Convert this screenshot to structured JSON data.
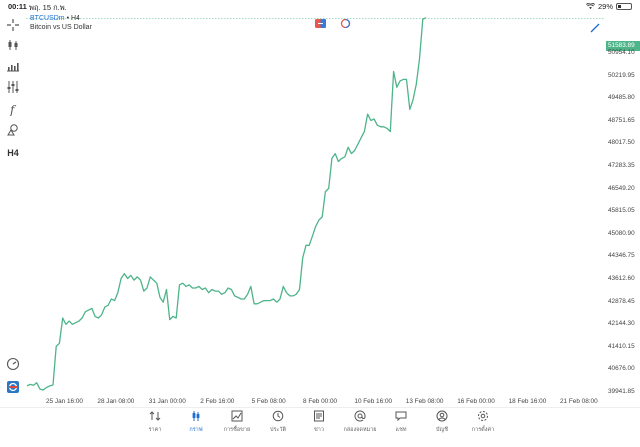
{
  "status": {
    "time": "00:11",
    "date": "พฤ. 15 ก.พ.",
    "battery_text": "29%",
    "battery_level": 0.29
  },
  "symbol": {
    "name": "BTCUSDm",
    "separator": " • ",
    "timeframe": "H4",
    "description": "Bitcoin vs US Dollar"
  },
  "toolbar": {
    "timeframe_label": "H4"
  },
  "price_axis": {
    "current": "51583.89",
    "ticks": [
      "50954.10",
      "50219.95",
      "49485.80",
      "48751.65",
      "48017.50",
      "47283.35",
      "46549.20",
      "45815.05",
      "45080.90",
      "44346.75",
      "43612.60",
      "42878.45",
      "42144.30",
      "41410.15",
      "40676.00",
      "39941.85"
    ]
  },
  "time_axis": {
    "ticks": [
      "25 Jan 16:00",
      "28 Jan 08:00",
      "31 Jan 00:00",
      "2 Feb 16:00",
      "5 Feb 08:00",
      "8 Feb 00:00",
      "10 Feb 16:00",
      "13 Feb 08:00",
      "16 Feb 00:00",
      "18 Feb 16:00",
      "21 Feb 08:00"
    ]
  },
  "nav": [
    {
      "label": "ราคา",
      "icon": "quotes-icon"
    },
    {
      "label": "กราฟ",
      "icon": "chart-icon",
      "active": true
    },
    {
      "label": "การซื้อขาย",
      "icon": "trade-icon"
    },
    {
      "label": "ประวัติ",
      "icon": "history-icon"
    },
    {
      "label": "ข่าว",
      "icon": "news-icon"
    },
    {
      "label": "กล่องจดหมาย",
      "icon": "mailbox-icon"
    },
    {
      "label": "แชท",
      "icon": "chat-icon"
    },
    {
      "label": "บัญชี",
      "icon": "account-icon"
    },
    {
      "label": "การตั้งค่า",
      "icon": "settings-icon"
    }
  ],
  "colors": {
    "line": "#4eb48a",
    "accent": "#1c6ed6"
  },
  "chart_data": {
    "type": "line",
    "ylim": [
      39600,
      51750
    ],
    "last_price": 51583.89,
    "values": [
      39950,
      40000,
      39970,
      40050,
      39850,
      39820,
      39900,
      39950,
      39980,
      41200,
      41300,
      42100,
      41900,
      42000,
      41900,
      41950,
      42000,
      42100,
      42300,
      42350,
      42400,
      42150,
      42100,
      42200,
      42450,
      42500,
      42700,
      42650,
      42900,
      43350,
      43500,
      43350,
      43450,
      43300,
      43400,
      43300,
      42950,
      43050,
      43400,
      43300,
      43200,
      42750,
      42600,
      43000,
      42050,
      42150,
      42100,
      43150,
      43200,
      43100,
      43150,
      43050,
      43050,
      43100,
      43000,
      43050,
      42900,
      43000,
      42950,
      42950,
      42850,
      42900,
      43050,
      43000,
      42800,
      42750,
      42700,
      42700,
      42850,
      43100,
      42550,
      42550,
      42600,
      42650,
      42650,
      42650,
      42700,
      42600,
      42700,
      43100,
      42900,
      42800,
      42800,
      42850,
      43000,
      44000,
      44400,
      44400,
      44700,
      45000,
      45200,
      45300,
      46100,
      46200,
      47150,
      47300,
      47050,
      47150,
      47200,
      47500,
      47300,
      47400,
      47600,
      47800,
      48000,
      48550,
      48350,
      48400,
      48200,
      48150,
      48150,
      48100,
      48000,
      49900,
      49400,
      49600,
      49650,
      49650,
      48700,
      49000,
      49500,
      50300,
      51550,
      51600
    ]
  }
}
